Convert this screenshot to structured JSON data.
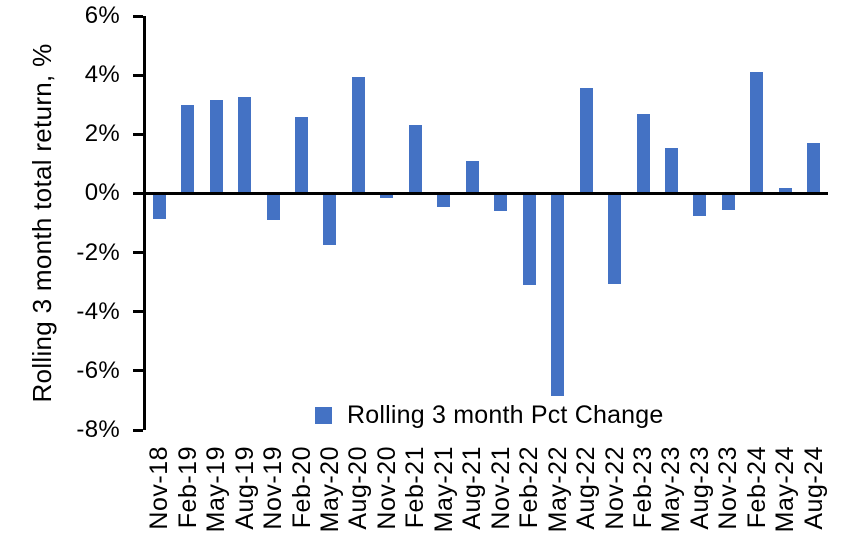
{
  "meta": {
    "background": "#ffffff"
  },
  "colors": {
    "bar": "#4472C4",
    "axis": "#000000",
    "text": "#000000"
  },
  "legend": {
    "label": "Rolling 3 month Pct Change",
    "swatch_color": "#4472C4"
  },
  "chart_data": {
    "type": "bar",
    "title": "",
    "xlabel": "",
    "ylabel": "Rolling 3 month total return, %",
    "ylim": [
      -8,
      6
    ],
    "yticks": [
      6,
      4,
      2,
      0,
      -2,
      -4,
      -6,
      -8
    ],
    "ytick_labels": [
      "6%",
      "4%",
      "2%",
      "0%",
      "-2%",
      "-4%",
      "-6%",
      "-8%"
    ],
    "grid": false,
    "legend_position": "inside-bottom-center",
    "categories": [
      "Nov-18",
      "Feb-19",
      "May-19",
      "Aug-19",
      "Nov-19",
      "Feb-20",
      "May-20",
      "Aug-20",
      "Nov-20",
      "Feb-21",
      "May-21",
      "Aug-21",
      "Nov-21",
      "Feb-22",
      "May-22",
      "Aug-22",
      "Nov-22",
      "Feb-23",
      "May-23",
      "Aug-23",
      "Nov-23",
      "Feb-24",
      "May-24",
      "Aug-24"
    ],
    "series": [
      {
        "name": "Rolling 3 month Pct Change",
        "color": "#4472C4",
        "values": [
          -0.85,
          3.0,
          3.15,
          3.25,
          -0.9,
          2.6,
          -1.75,
          3.95,
          -0.15,
          2.3,
          -0.45,
          1.1,
          -0.6,
          -3.1,
          -6.85,
          3.55,
          -3.05,
          2.7,
          1.55,
          -0.75,
          -0.55,
          4.1,
          0.2,
          1.7
        ]
      }
    ]
  }
}
